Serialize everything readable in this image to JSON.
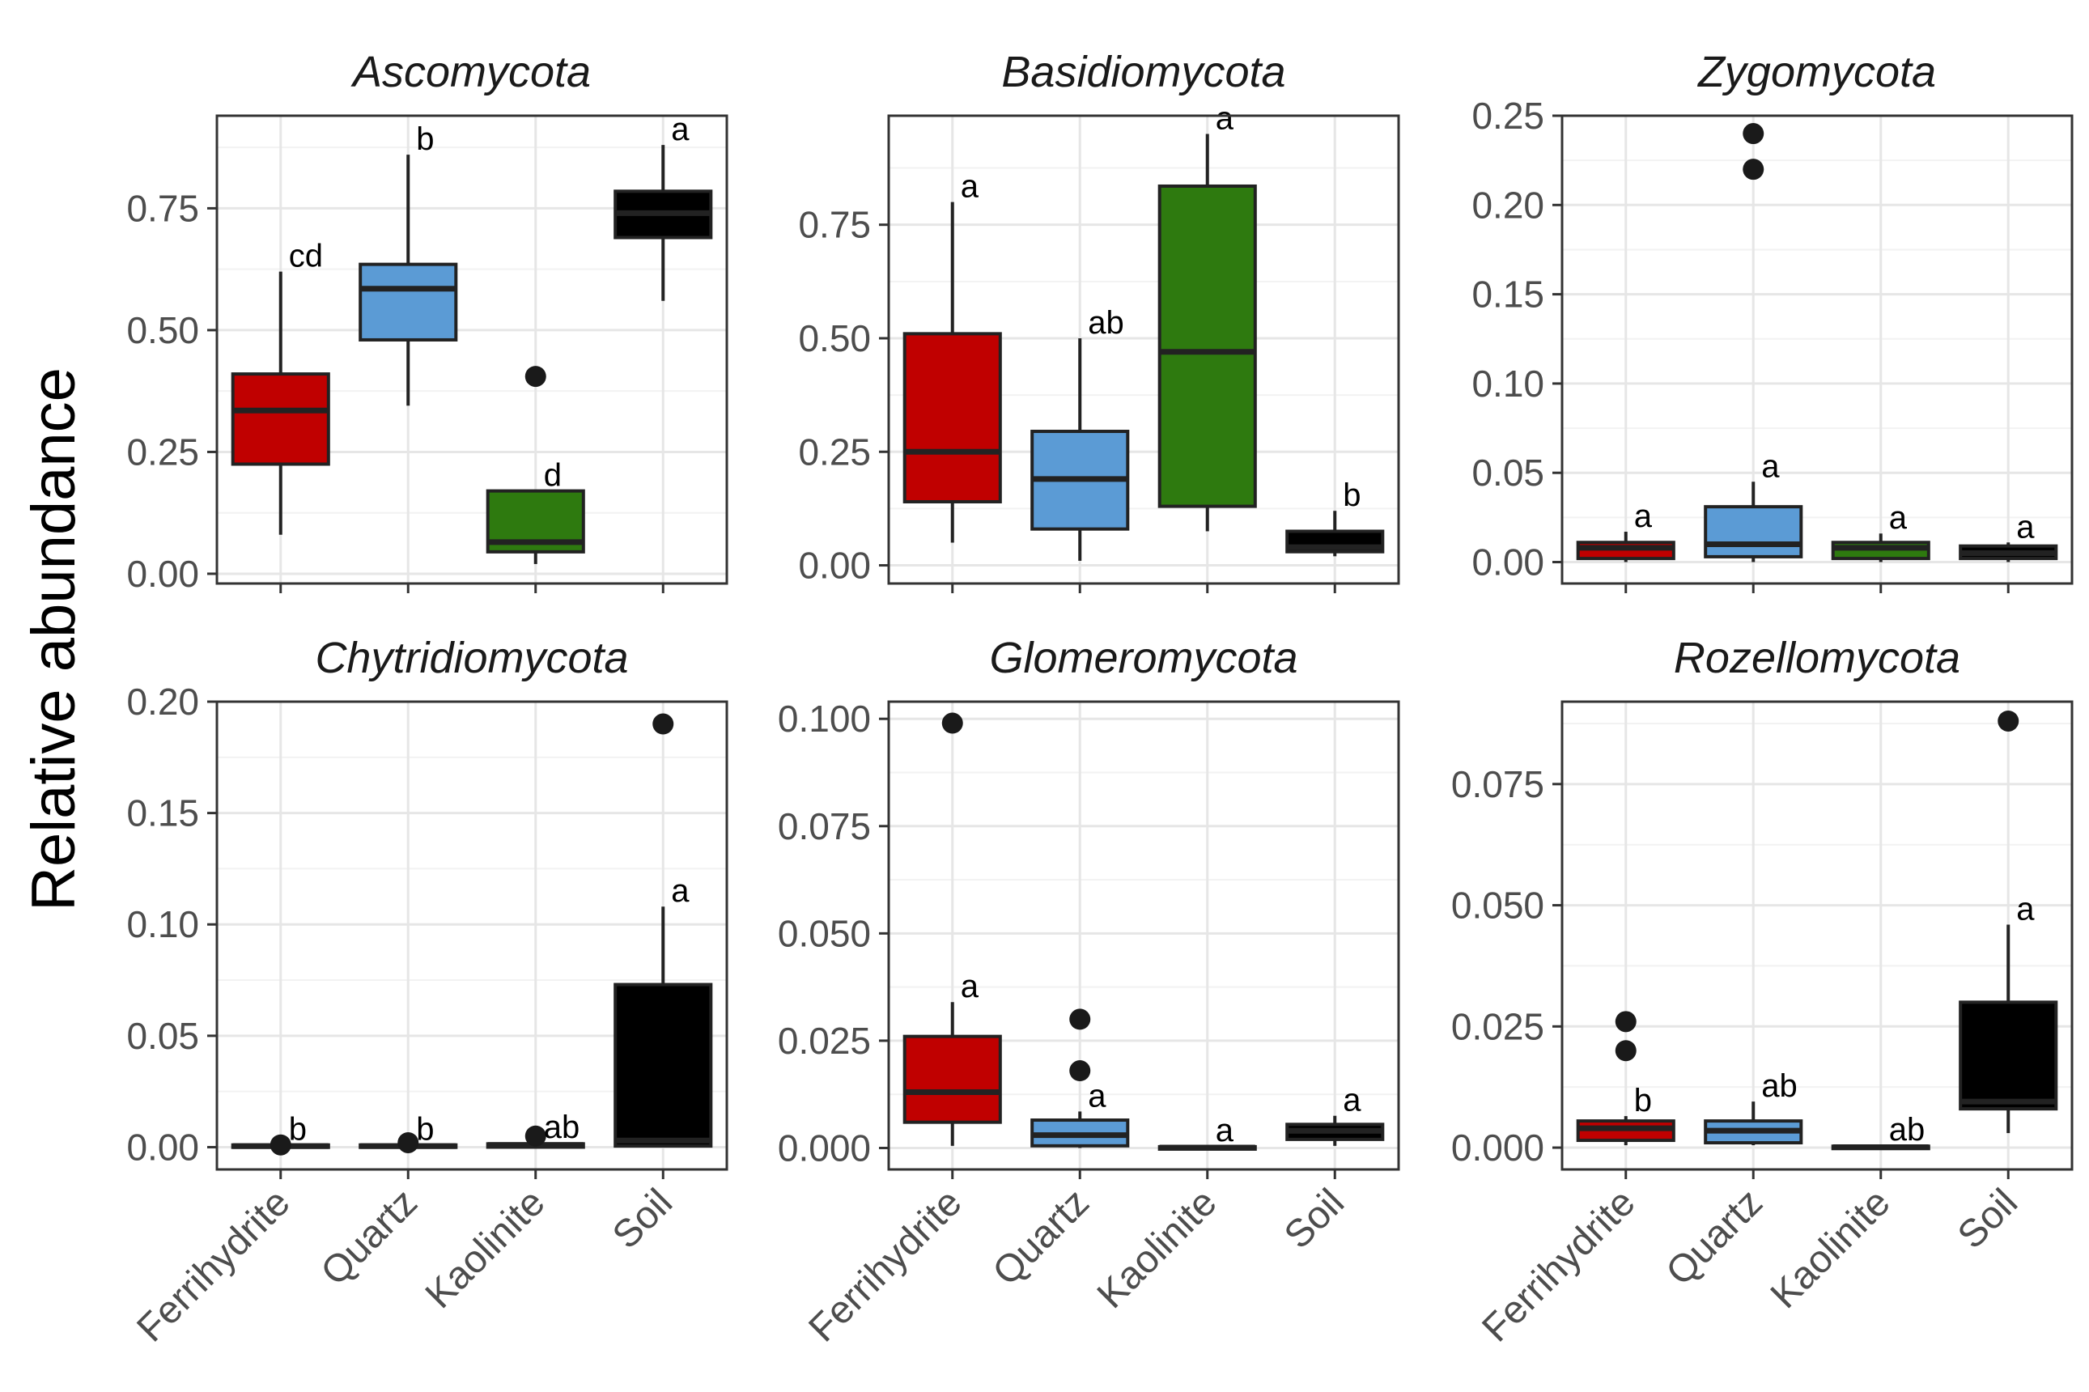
{
  "y_axis_label": "Relative abundance",
  "categories": [
    "Ferrihydrite",
    "Quartz",
    "Kaolinite",
    "Soil"
  ],
  "colors": {
    "Ferrihydrite": "#c00000",
    "Quartz": "#5b9bd5",
    "Kaolinite": "#2e7a0f",
    "Soil": "#000000",
    "median_line": "#222222",
    "outlier": "#1a1a1a",
    "grid_major": "#e6e6e6",
    "grid_minor": "#f2f2f2",
    "panel_border": "#333333"
  },
  "chart_data": [
    {
      "type": "box",
      "title": "Ascomycota",
      "ylim": [
        -0.02,
        0.94
      ],
      "yticks": [
        0.0,
        0.25,
        0.5,
        0.75
      ],
      "ytick_labels": [
        "0.00",
        "0.25",
        "0.50",
        "0.75"
      ],
      "show_x_labels": false,
      "boxes": [
        {
          "category": "Ferrihydrite",
          "min": 0.08,
          "q1": 0.225,
          "median": 0.335,
          "q3": 0.41,
          "max": 0.62,
          "outliers": [],
          "letter": "cd"
        },
        {
          "category": "Quartz",
          "min": 0.345,
          "q1": 0.48,
          "median": 0.585,
          "q3": 0.635,
          "max": 0.86,
          "outliers": [],
          "letter": "b"
        },
        {
          "category": "Kaolinite",
          "min": 0.02,
          "q1": 0.045,
          "median": 0.065,
          "q3": 0.17,
          "max": 0.17,
          "outliers": [
            0.405
          ],
          "letter": "d"
        },
        {
          "category": "Soil",
          "min": 0.56,
          "q1": 0.69,
          "median": 0.74,
          "q3": 0.785,
          "max": 0.88,
          "outliers": [],
          "letter": "a"
        }
      ]
    },
    {
      "type": "box",
      "title": "Basidiomycota",
      "ylim": [
        -0.04,
        0.99
      ],
      "yticks": [
        0.0,
        0.25,
        0.5,
        0.75
      ],
      "ytick_labels": [
        "0.00",
        "0.25",
        "0.50",
        "0.75"
      ],
      "show_x_labels": false,
      "boxes": [
        {
          "category": "Ferrihydrite",
          "min": 0.05,
          "q1": 0.14,
          "median": 0.25,
          "q3": 0.51,
          "max": 0.8,
          "outliers": [],
          "letter": "a"
        },
        {
          "category": "Quartz",
          "min": 0.01,
          "q1": 0.08,
          "median": 0.19,
          "q3": 0.295,
          "max": 0.5,
          "outliers": [],
          "letter": "ab"
        },
        {
          "category": "Kaolinite",
          "min": 0.075,
          "q1": 0.13,
          "median": 0.47,
          "q3": 0.835,
          "max": 0.95,
          "outliers": [],
          "letter": "a"
        },
        {
          "category": "Soil",
          "min": 0.02,
          "q1": 0.03,
          "median": 0.04,
          "q3": 0.075,
          "max": 0.12,
          "outliers": [],
          "letter": "b"
        }
      ]
    },
    {
      "type": "box",
      "title": "Zygomycota",
      "ylim": [
        -0.012,
        0.25
      ],
      "yticks": [
        0.0,
        0.05,
        0.1,
        0.15,
        0.2,
        0.25
      ],
      "ytick_labels": [
        "0.00",
        "0.05",
        "0.10",
        "0.15",
        "0.20",
        "0.25"
      ],
      "show_x_labels": false,
      "boxes": [
        {
          "category": "Ferrihydrite",
          "min": 0.0,
          "q1": 0.002,
          "median": 0.008,
          "q3": 0.011,
          "max": 0.017,
          "outliers": [],
          "letter": "a"
        },
        {
          "category": "Quartz",
          "min": 0.0,
          "q1": 0.003,
          "median": 0.01,
          "q3": 0.031,
          "max": 0.045,
          "outliers": [
            0.22,
            0.24
          ],
          "letter": "a"
        },
        {
          "category": "Kaolinite",
          "min": 0.0,
          "q1": 0.002,
          "median": 0.008,
          "q3": 0.011,
          "max": 0.016,
          "outliers": [],
          "letter": "a"
        },
        {
          "category": "Soil",
          "min": 0.0,
          "q1": 0.002,
          "median": 0.005,
          "q3": 0.009,
          "max": 0.011,
          "outliers": [],
          "letter": "a"
        }
      ]
    },
    {
      "type": "box",
      "title": "Chytridiomycota",
      "ylim": [
        -0.01,
        0.2
      ],
      "yticks": [
        0.0,
        0.05,
        0.1,
        0.15,
        0.2
      ],
      "ytick_labels": [
        "0.00",
        "0.05",
        "0.10",
        "0.15",
        "0.20"
      ],
      "show_x_labels": true,
      "boxes": [
        {
          "category": "Ferrihydrite",
          "min": 0.0,
          "q1": 0.0,
          "median": 0.0005,
          "q3": 0.001,
          "max": 0.001,
          "outliers": [
            0.001
          ],
          "letter": "b"
        },
        {
          "category": "Quartz",
          "min": 0.0,
          "q1": 0.0,
          "median": 0.0005,
          "q3": 0.001,
          "max": 0.001,
          "outliers": [
            0.002
          ],
          "letter": "b"
        },
        {
          "category": "Kaolinite",
          "min": 0.0,
          "q1": 0.0,
          "median": 0.001,
          "q3": 0.0015,
          "max": 0.002,
          "outliers": [
            0.005
          ],
          "letter": "ab"
        },
        {
          "category": "Soil",
          "min": 0.0,
          "q1": 0.0005,
          "median": 0.003,
          "q3": 0.073,
          "max": 0.108,
          "outliers": [
            0.19
          ],
          "letter": "a"
        }
      ]
    },
    {
      "type": "box",
      "title": "Glomeromycota",
      "ylim": [
        -0.005,
        0.104
      ],
      "yticks": [
        0.0,
        0.025,
        0.05,
        0.075,
        0.1
      ],
      "ytick_labels": [
        "0.000",
        "0.025",
        "0.050",
        "0.075",
        "0.100"
      ],
      "show_x_labels": true,
      "boxes": [
        {
          "category": "Ferrihydrite",
          "min": 0.0005,
          "q1": 0.006,
          "median": 0.013,
          "q3": 0.026,
          "max": 0.034,
          "outliers": [
            0.099
          ],
          "letter": "a"
        },
        {
          "category": "Quartz",
          "min": 0.0,
          "q1": 0.0005,
          "median": 0.003,
          "q3": 0.0065,
          "max": 0.0085,
          "outliers": [
            0.018,
            0.03
          ],
          "letter": "a"
        },
        {
          "category": "Kaolinite",
          "min": 0.0,
          "q1": 0.0,
          "median": 0.0001,
          "q3": 0.0003,
          "max": 0.0005,
          "outliers": [],
          "letter": "a"
        },
        {
          "category": "Soil",
          "min": 0.0005,
          "q1": 0.002,
          "median": 0.004,
          "q3": 0.0055,
          "max": 0.0075,
          "outliers": [],
          "letter": "a"
        }
      ]
    },
    {
      "type": "box",
      "title": "Rozellomycota",
      "ylim": [
        -0.0045,
        0.092
      ],
      "yticks": [
        0.0,
        0.025,
        0.05,
        0.075
      ],
      "ytick_labels": [
        "0.000",
        "0.025",
        "0.050",
        "0.075"
      ],
      "show_x_labels": true,
      "boxes": [
        {
          "category": "Ferrihydrite",
          "min": 0.0005,
          "q1": 0.0015,
          "median": 0.004,
          "q3": 0.0055,
          "max": 0.0065,
          "outliers": [
            0.02,
            0.026
          ],
          "letter": "b"
        },
        {
          "category": "Quartz",
          "min": 0.0005,
          "q1": 0.001,
          "median": 0.0035,
          "q3": 0.0055,
          "max": 0.0095,
          "outliers": [],
          "letter": "ab"
        },
        {
          "category": "Kaolinite",
          "min": 0.0,
          "q1": 0.0,
          "median": 0.0001,
          "q3": 0.0003,
          "max": 0.0005,
          "outliers": [],
          "letter": "ab"
        },
        {
          "category": "Soil",
          "min": 0.003,
          "q1": 0.008,
          "median": 0.0095,
          "q3": 0.03,
          "max": 0.046,
          "outliers": [
            0.088
          ],
          "letter": "a"
        }
      ]
    }
  ]
}
